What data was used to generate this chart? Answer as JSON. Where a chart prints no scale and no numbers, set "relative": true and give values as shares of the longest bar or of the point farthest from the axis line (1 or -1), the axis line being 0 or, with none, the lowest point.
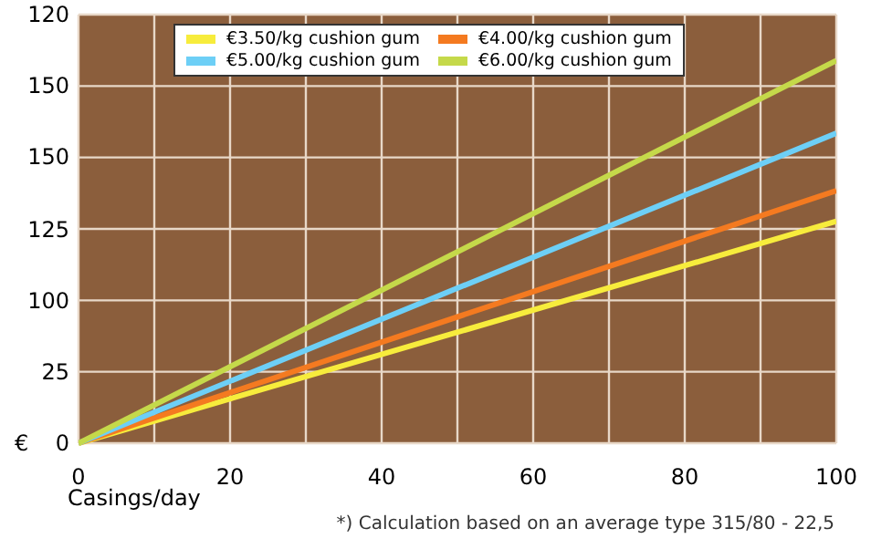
{
  "chart_data": {
    "type": "line",
    "xlabel": "Casings/day",
    "ylabel": "€",
    "relative": true,
    "x": [
      0,
      100
    ],
    "series": [
      {
        "name": "€3.50/kg cushion gum",
        "color": "#f7ec3c",
        "values": [
          0,
          0.58
        ]
      },
      {
        "name": "€4.00/kg cushion gum",
        "color": "#f47a20",
        "values": [
          0,
          0.66
        ]
      },
      {
        "name": "€5.00/kg cushion gum",
        "color": "#6dcff6",
        "values": [
          0,
          0.81
        ]
      },
      {
        "name": "€6.00/kg cushion gum",
        "color": "#c5d94a",
        "values": [
          0,
          1
        ]
      }
    ],
    "xlim": [
      0,
      100
    ],
    "xticks": [
      0,
      {
        "value": 10,
        "label": null
      },
      20,
      {
        "value": 30,
        "label": null
      },
      40,
      {
        "value": 50,
        "label": null
      },
      60,
      {
        "value": 70,
        "label": null
      },
      80,
      {
        "value": 90,
        "label": null
      },
      100
    ],
    "grid": true,
    "legend": "top",
    "marker": "none",
    "line_style": "solid",
    "annotations": [
      "120",
      "150",
      "150",
      "125",
      "100",
      "25",
      "0",
      "*) Calculation based on an average type 315/80 - 22,5"
    ]
  }
}
